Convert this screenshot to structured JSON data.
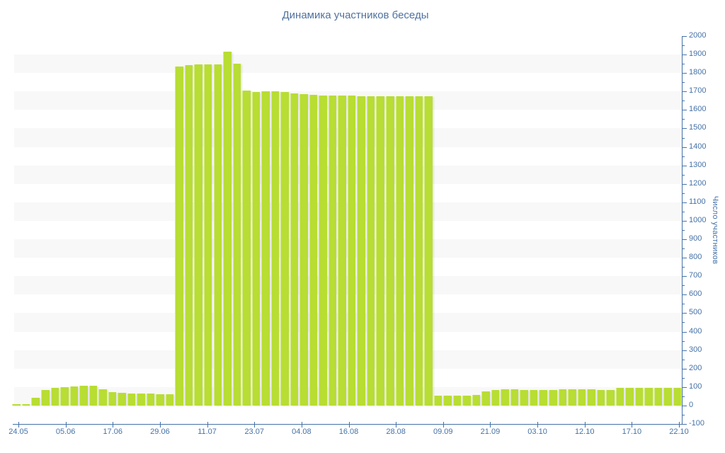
{
  "title": "Динамика участников беседы",
  "y_axis_title": "Число участников",
  "colors": {
    "bar": "#b8dd33",
    "bar_edge": "#d6ec8a",
    "axis": "#4572a7",
    "label": "#4572a7",
    "title": "#50719f",
    "band": "#f8f8f8"
  },
  "chart_data": {
    "type": "bar",
    "title": "Динамика участников беседы",
    "xlabel": "",
    "ylabel": "Число участников",
    "ylim": [
      -100,
      2000
    ],
    "y_tick_interval": 100,
    "y_minor_tick_interval": 50,
    "grid": "alternating horizontal bands (gray on 0-100, 200-300, ... 1800-1900)",
    "legend": "none",
    "x_tick_labels": [
      "24.05",
      "05.06",
      "17.06",
      "29.06",
      "11.07",
      "23.07",
      "04.08",
      "16.08",
      "28.08",
      "09.09",
      "21.09",
      "03.10",
      "12.10",
      "17.10",
      "22.10"
    ],
    "values": [
      8,
      8,
      41,
      84,
      95,
      101,
      105,
      107,
      107,
      88,
      72,
      69,
      63,
      63,
      63,
      60,
      60,
      1836,
      1842,
      1847,
      1846,
      1847,
      1915,
      1850,
      1706,
      1697,
      1701,
      1703,
      1699,
      1689,
      1684,
      1683,
      1680,
      1679,
      1677,
      1677,
      1676,
      1676,
      1676,
      1675,
      1674,
      1674,
      1675,
      1674,
      54,
      55,
      55,
      55,
      59,
      78,
      85,
      87,
      87,
      85,
      85,
      85,
      85,
      87,
      87,
      87,
      87,
      85,
      85,
      96,
      97,
      97,
      96,
      96,
      96,
      95
    ]
  }
}
